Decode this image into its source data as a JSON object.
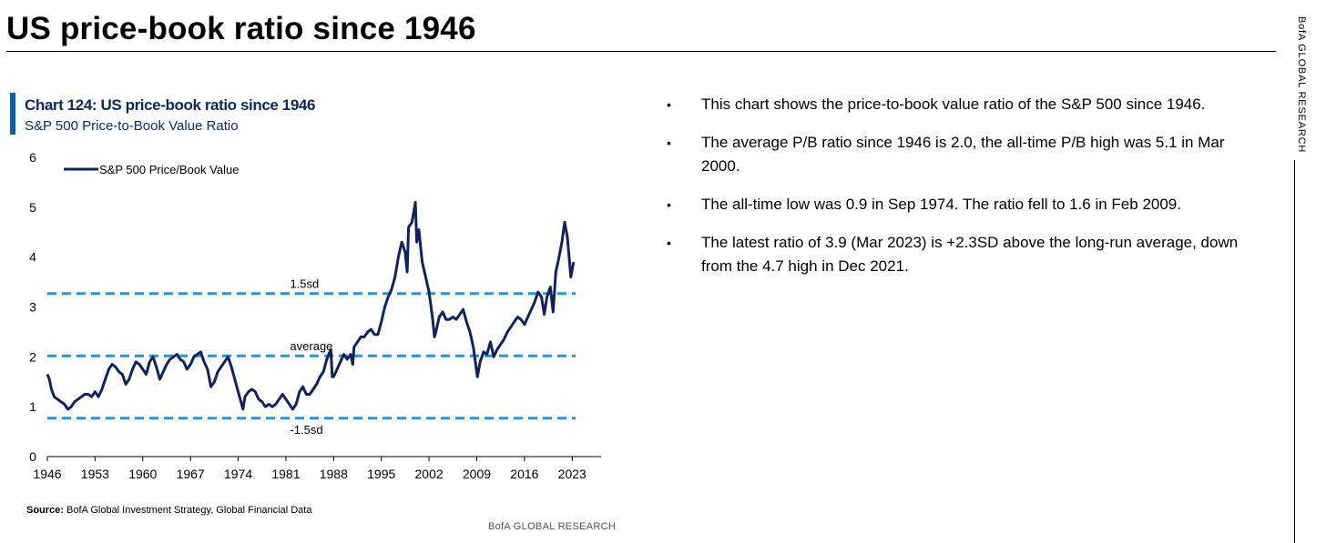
{
  "page": {
    "title": "US price-book ratio since 1946",
    "side_label": "BofA GLOBAL RESEARCH"
  },
  "chart": {
    "title": "Chart 124: US price-book ratio since 1946",
    "subtitle": "S&P 500 Price-to-Book Value Ratio",
    "source_label": "Source:",
    "source_text": "BofA Global Investment Strategy, Global Financial Data",
    "brand": "BofA GLOBAL RESEARCH"
  },
  "colors": {
    "series_line": "#10235f",
    "reference_lines": "#1f9ad6",
    "accent_bar": "#0b5fb0",
    "title_text": "#0a2a5e"
  },
  "chart_data": {
    "type": "line",
    "title": "Chart 124: US price-book ratio since 1946",
    "subtitle": "S&P 500 Price-to-Book Value Ratio",
    "xlabel": "",
    "ylabel": "",
    "xlim": [
      1946,
      2023.5
    ],
    "ylim": [
      0,
      6
    ],
    "yticks": [
      "0",
      "1",
      "2",
      "3",
      "4",
      "5",
      "6"
    ],
    "xticks": [
      "1946",
      "1953",
      "1960",
      "1967",
      "1974",
      "1981",
      "1988",
      "1995",
      "2002",
      "2009",
      "2016",
      "2023"
    ],
    "legend": {
      "label": "S&P 500 Price/Book Value",
      "position": "top-left"
    },
    "series": [
      {
        "name": "S&P 500 Price/Book Value",
        "x": [
          1946.0,
          1946.3,
          1946.6,
          1947.0,
          1947.5,
          1948.0,
          1948.5,
          1949.0,
          1949.5,
          1950.0,
          1950.5,
          1951.0,
          1951.5,
          1952.0,
          1952.5,
          1953.0,
          1953.5,
          1954.0,
          1954.5,
          1955.0,
          1955.5,
          1956.0,
          1956.5,
          1957.0,
          1957.5,
          1958.0,
          1958.5,
          1959.0,
          1959.5,
          1960.0,
          1960.5,
          1961.0,
          1961.5,
          1962.0,
          1962.5,
          1963.0,
          1963.5,
          1964.0,
          1964.5,
          1965.0,
          1965.5,
          1966.0,
          1966.5,
          1967.0,
          1967.5,
          1968.0,
          1968.5,
          1969.0,
          1969.5,
          1970.0,
          1970.5,
          1971.0,
          1971.5,
          1972.0,
          1972.5,
          1973.0,
          1973.5,
          1974.0,
          1974.5,
          1974.7,
          1975.0,
          1975.5,
          1976.0,
          1976.5,
          1977.0,
          1977.5,
          1978.0,
          1978.5,
          1979.0,
          1979.5,
          1980.0,
          1980.5,
          1981.0,
          1981.5,
          1982.0,
          1982.5,
          1983.0,
          1983.5,
          1984.0,
          1984.5,
          1985.0,
          1985.5,
          1986.0,
          1986.5,
          1987.0,
          1987.6,
          1987.8,
          1988.0,
          1988.5,
          1989.0,
          1989.5,
          1990.0,
          1990.5,
          1990.8,
          1991.0,
          1991.5,
          1992.0,
          1992.5,
          1993.0,
          1993.5,
          1994.0,
          1994.5,
          1995.0,
          1995.5,
          1996.0,
          1996.5,
          1997.0,
          1997.5,
          1998.0,
          1998.5,
          1998.8,
          1999.0,
          1999.5,
          2000.0,
          2000.2,
          2000.5,
          2001.0,
          2001.5,
          2002.0,
          2002.5,
          2002.8,
          2003.0,
          2003.5,
          2004.0,
          2004.5,
          2005.0,
          2005.5,
          2006.0,
          2006.5,
          2007.0,
          2007.5,
          2008.0,
          2008.5,
          2008.9,
          2009.1,
          2009.5,
          2010.0,
          2010.5,
          2011.0,
          2011.5,
          2012.0,
          2012.5,
          2013.0,
          2013.5,
          2014.0,
          2014.5,
          2015.0,
          2015.5,
          2016.0,
          2016.5,
          2017.0,
          2017.5,
          2018.0,
          2018.5,
          2018.9,
          2019.3,
          2019.8,
          2020.2,
          2020.6,
          2021.0,
          2021.5,
          2021.9,
          2022.3,
          2022.8,
          2023.2
        ],
        "values": [
          1.65,
          1.55,
          1.35,
          1.2,
          1.15,
          1.1,
          1.05,
          0.95,
          1.0,
          1.1,
          1.15,
          1.2,
          1.25,
          1.25,
          1.2,
          1.3,
          1.2,
          1.35,
          1.55,
          1.75,
          1.85,
          1.8,
          1.7,
          1.65,
          1.45,
          1.55,
          1.75,
          1.9,
          1.85,
          1.75,
          1.65,
          1.9,
          2.0,
          1.8,
          1.55,
          1.7,
          1.85,
          1.95,
          2.0,
          2.05,
          1.95,
          1.9,
          1.75,
          1.85,
          2.0,
          2.05,
          2.1,
          1.9,
          1.75,
          1.4,
          1.5,
          1.7,
          1.8,
          1.9,
          2.0,
          1.8,
          1.55,
          1.3,
          1.05,
          0.95,
          1.2,
          1.3,
          1.35,
          1.3,
          1.15,
          1.1,
          1.0,
          1.05,
          1.0,
          1.05,
          1.15,
          1.25,
          1.15,
          1.05,
          0.95,
          1.05,
          1.3,
          1.4,
          1.25,
          1.25,
          1.35,
          1.45,
          1.6,
          1.7,
          1.95,
          2.15,
          1.6,
          1.6,
          1.75,
          1.9,
          2.05,
          1.95,
          2.05,
          1.85,
          2.2,
          2.3,
          2.4,
          2.4,
          2.5,
          2.55,
          2.45,
          2.45,
          2.7,
          3.0,
          3.2,
          3.35,
          3.6,
          4.0,
          4.3,
          4.1,
          3.7,
          4.6,
          4.7,
          5.1,
          4.3,
          4.55,
          3.9,
          3.6,
          3.3,
          2.8,
          2.4,
          2.5,
          2.8,
          2.9,
          2.75,
          2.75,
          2.8,
          2.75,
          2.85,
          2.95,
          2.7,
          2.5,
          2.2,
          1.8,
          1.6,
          1.9,
          2.1,
          2.05,
          2.3,
          2.0,
          2.15,
          2.25,
          2.35,
          2.5,
          2.6,
          2.7,
          2.8,
          2.75,
          2.65,
          2.8,
          2.95,
          3.1,
          3.3,
          3.2,
          2.85,
          3.2,
          3.4,
          2.9,
          3.7,
          3.95,
          4.3,
          4.7,
          4.4,
          3.6,
          3.9
        ]
      }
    ],
    "reference_lines": [
      {
        "label": "1.5sd",
        "value": 3.27
      },
      {
        "label": "average",
        "value": 2.02
      },
      {
        "label": "-1.5sd",
        "value": 0.77
      }
    ]
  },
  "bullets": [
    "This chart shows the price-to-book value ratio of the S&P 500 since 1946.",
    "The average P/B ratio since 1946 is 2.0, the all-time P/B high was 5.1 in Mar 2000.",
    "The all-time low was 0.9 in Sep 1974. The ratio fell to 1.6 in Feb 2009.",
    "The latest ratio of 3.9 (Mar 2023) is +2.3SD above the long-run average, down from the 4.7 high in Dec 2021."
  ],
  "bullet_symbol": "•"
}
